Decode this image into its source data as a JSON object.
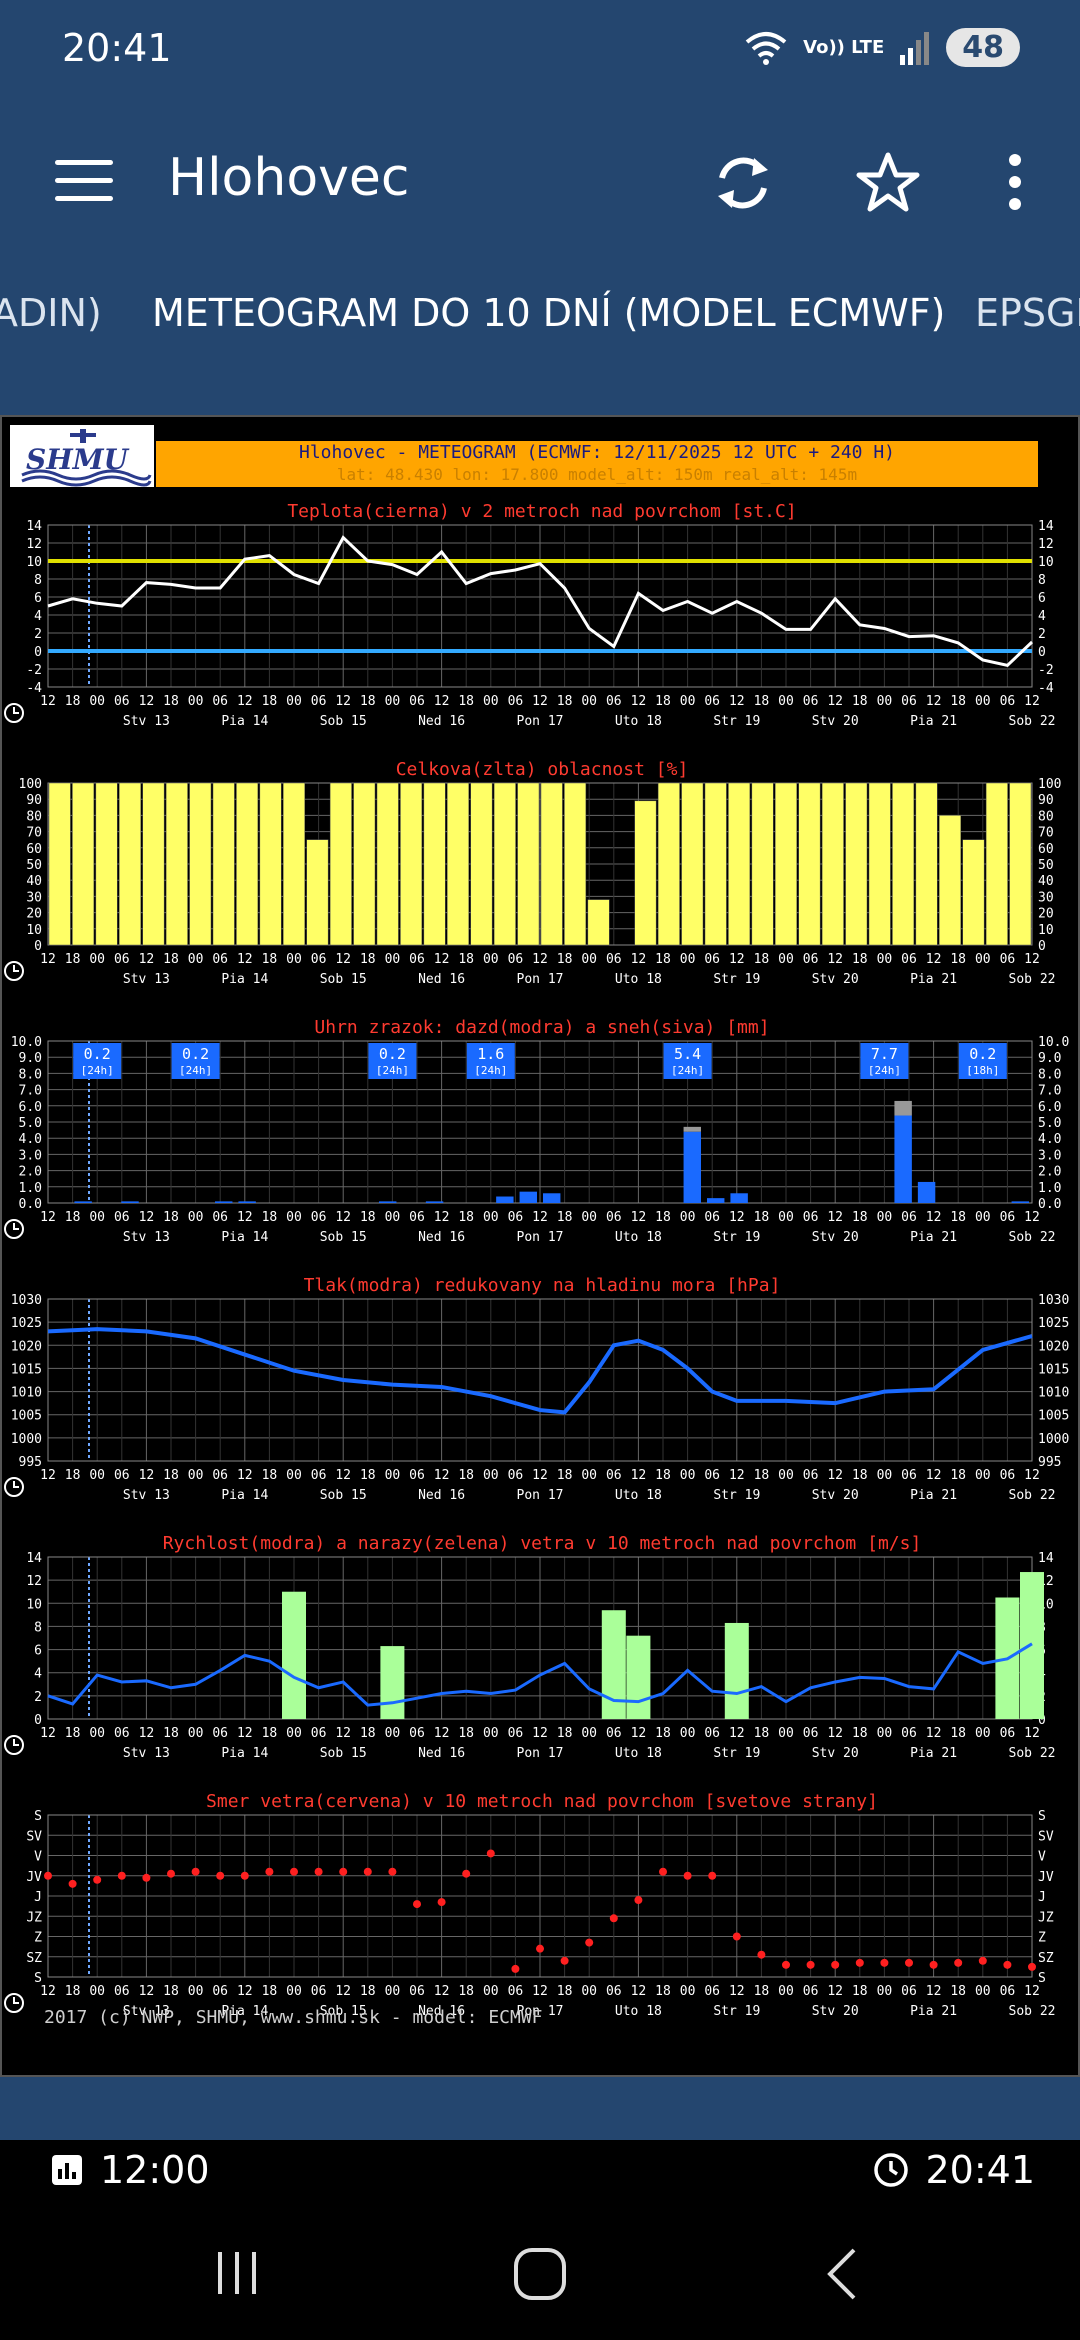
{
  "status": {
    "time": "20:41",
    "signal_label": "Vo)) LTE",
    "battery": "48"
  },
  "app": {
    "title": "Hlohovec"
  },
  "tabs": [
    {
      "label": "ADIN)"
    },
    {
      "label": "METEOGRAM DO 10 DNÍ (MODEL ECMWF)"
    },
    {
      "label": "EPSGI"
    }
  ],
  "meteogram": {
    "logo": "SHMU",
    "header_title": "Hlohovec - METEOGRAM (ECMWF: 12/11/2025 12 UTC + 240 H)",
    "header_sub": "lat: 48.430   lon: 17.800   model_alt: 150m   real_alt: 145m",
    "footer": "2017 (c) NWP, SHMU, www.shmu.sk - model: ECMWF",
    "hour_ticks": [
      "12",
      "18",
      "00",
      "06",
      "12",
      "18",
      "00",
      "06",
      "12",
      "18",
      "00",
      "06",
      "12",
      "18",
      "00",
      "06",
      "12",
      "18",
      "00",
      "06",
      "12",
      "18",
      "00",
      "06",
      "12",
      "18",
      "00",
      "06",
      "12",
      "18",
      "00",
      "06",
      "12",
      "18",
      "00",
      "06",
      "12",
      "18",
      "00",
      "06",
      "12"
    ],
    "days": [
      "Stv 13",
      "Pia 14",
      "Sob 15",
      "Ned 16",
      "Pon 17",
      "Uto 18",
      "Str 19",
      "Stv 20",
      "Pia 21",
      "Sob 22"
    ]
  },
  "chart_data": [
    {
      "type": "line",
      "title": "Teplota(cierna) v 2 metroch nad povrchom [st.C]",
      "ylim": [
        -4,
        14
      ],
      "yticks": [
        "-4",
        "-2",
        "0",
        "2",
        "4",
        "6",
        "8",
        "10",
        "12",
        "14"
      ],
      "x_hours": [
        0,
        6,
        12,
        18,
        24,
        30,
        36,
        42,
        48,
        54,
        60,
        66,
        72,
        78,
        84,
        90,
        96,
        102,
        108,
        114,
        120,
        126,
        132,
        138,
        144,
        150,
        156,
        162,
        168,
        174,
        180,
        186,
        192,
        198,
        204,
        210,
        216,
        222,
        228,
        234,
        240
      ],
      "values": [
        5,
        5.8,
        5.3,
        5,
        7.6,
        7.4,
        7,
        7,
        10.2,
        10.6,
        8.5,
        7.5,
        12.6,
        10,
        9.6,
        8.5,
        11,
        7.5,
        8.6,
        9,
        9.7,
        7,
        2.5,
        0.5,
        6.4,
        4.5,
        5.5,
        4.2,
        5.5,
        4.2,
        2.4,
        2.4,
        5.8,
        2.9,
        2.5,
        1.6,
        1.7,
        0.9,
        -1,
        -1.6,
        1
      ],
      "ref_lines": [
        {
          "value": 10,
          "color": "#e0e000"
        },
        {
          "value": 0,
          "color": "#33aaff"
        }
      ]
    },
    {
      "type": "bar",
      "title": "Celkova(zlta) oblacnost [%]",
      "ylim": [
        0,
        100
      ],
      "yticks": [
        "0",
        "10",
        "20",
        "30",
        "40",
        "50",
        "60",
        "70",
        "80",
        "90",
        "100"
      ],
      "values": [
        100,
        100,
        100,
        100,
        100,
        100,
        100,
        100,
        100,
        100,
        100,
        65,
        100,
        100,
        100,
        100,
        100,
        100,
        100,
        100,
        100,
        100,
        100,
        28,
        0,
        89,
        100,
        100,
        100,
        100,
        100,
        100,
        100,
        100,
        100,
        100,
        100,
        100,
        80,
        65,
        100,
        100
      ],
      "color": "#ffff66"
    },
    {
      "type": "bar",
      "title": "Uhrn zrazok: dazd(modra) a sneh(siva) [mm]",
      "ylim": [
        0,
        10
      ],
      "yticks": [
        "0.0",
        "1.0",
        "2.0",
        "3.0",
        "4.0",
        "5.0",
        "6.0",
        "7.0",
        "8.0",
        "9.0",
        "10.0"
      ],
      "series": [
        {
          "name": "dazd",
          "color": "#1a6aff",
          "values": [
            0,
            0.1,
            0,
            0.1,
            0,
            0,
            0,
            0.1,
            0.1,
            0,
            0,
            0,
            0,
            0,
            0.1,
            0,
            0.1,
            0,
            0,
            0.4,
            0.7,
            0.6,
            0,
            0,
            0,
            0,
            0,
            4.4,
            0.3,
            0.6,
            0,
            0,
            0,
            0,
            0,
            0,
            5.4,
            1.3,
            0,
            0,
            0,
            0.1
          ]
        },
        {
          "name": "sneh",
          "color": "#999999",
          "values": [
            0,
            0,
            0,
            0,
            0,
            0,
            0,
            0,
            0,
            0,
            0,
            0,
            0,
            0,
            0,
            0,
            0,
            0,
            0,
            0,
            0,
            0,
            0,
            0,
            0,
            0,
            0,
            0.3,
            0,
            0,
            0,
            0,
            0,
            0,
            0,
            0,
            0.9,
            0,
            0,
            0,
            0,
            0
          ]
        }
      ],
      "totals": [
        {
          "value": "0.2",
          "period": "[24h]",
          "at_hour": 12
        },
        {
          "value": "0.2",
          "period": "[24h]",
          "at_hour": 36
        },
        {
          "value": "0.2",
          "period": "[24h]",
          "at_hour": 84
        },
        {
          "value": "1.6",
          "period": "[24h]",
          "at_hour": 108
        },
        {
          "value": "5.4",
          "period": "[24h]",
          "at_hour": 156
        },
        {
          "value": "7.7",
          "period": "[24h]",
          "at_hour": 204
        },
        {
          "value": "0.2",
          "period": "[18h]",
          "at_hour": 228
        }
      ]
    },
    {
      "type": "line",
      "title": "Tlak(modra) redukovany na hladinu mora [hPa]",
      "ylim": [
        995,
        1030
      ],
      "yticks": [
        "995",
        "1000",
        "1005",
        "1010",
        "1015",
        "1020",
        "1025",
        "1030"
      ],
      "x_hours": [
        0,
        12,
        24,
        36,
        48,
        60,
        72,
        84,
        96,
        108,
        120,
        126,
        132,
        138,
        144,
        150,
        156,
        162,
        168,
        180,
        192,
        204,
        216,
        228,
        240
      ],
      "values": [
        1023,
        1023.5,
        1023,
        1021.5,
        1018,
        1014.5,
        1012.5,
        1011.5,
        1011,
        1009,
        1006,
        1005.5,
        1012,
        1020,
        1021,
        1019,
        1015,
        1010,
        1008,
        1008,
        1007.5,
        1010,
        1010.5,
        1019,
        1022
      ],
      "color": "#1a6aff"
    },
    {
      "type": "line",
      "title": "Rychlost(modra) a narazy(zelena) vetra v 10 metroch nad povrchom [m/s]",
      "ylim": [
        0,
        14
      ],
      "yticks": [
        "0",
        "2",
        "4",
        "6",
        "8",
        "10",
        "12",
        "14"
      ],
      "x_hours": [
        0,
        6,
        12,
        18,
        24,
        30,
        36,
        42,
        48,
        54,
        60,
        66,
        72,
        78,
        84,
        90,
        96,
        102,
        108,
        114,
        120,
        126,
        132,
        138,
        144,
        150,
        156,
        162,
        168,
        174,
        180,
        186,
        192,
        198,
        204,
        210,
        216,
        222,
        228,
        234,
        240
      ],
      "values": [
        2,
        1.3,
        3.8,
        3.2,
        3.3,
        2.7,
        3,
        4.2,
        5.5,
        5,
        3.6,
        2.7,
        3.2,
        1.2,
        1.4,
        1.8,
        2.2,
        2.4,
        2.2,
        2.5,
        3.8,
        4.8,
        2.6,
        1.6,
        1.5,
        2.2,
        4.2,
        2.4,
        2.2,
        2.8,
        1.5,
        2.7,
        3.2,
        3.6,
        3.5,
        2.8,
        2.6,
        5.8,
        4.8,
        5.2,
        6.5
      ],
      "gust_bars": [
        {
          "hour": 60,
          "value": 11
        },
        {
          "hour": 84,
          "value": 6.3
        },
        {
          "hour": 138,
          "value": 9.4
        },
        {
          "hour": 144,
          "value": 7.2
        },
        {
          "hour": 168,
          "value": 8.3
        },
        {
          "hour": 234,
          "value": 10.5
        },
        {
          "hour": 240,
          "value": 12.7
        }
      ],
      "color": "#1a6aff",
      "gust_color": "#aaff99"
    },
    {
      "type": "scatter",
      "title": "Smer vetra(cervena) v 10 metroch nad povrchom [svetove strany]",
      "yticks": [
        "S",
        "SZ",
        "Z",
        "JZ",
        "J",
        "JV",
        "V",
        "SV",
        "S"
      ],
      "x_hours": [
        0,
        6,
        12,
        18,
        24,
        30,
        36,
        42,
        48,
        54,
        60,
        66,
        72,
        78,
        84,
        90,
        96,
        102,
        108,
        114,
        120,
        126,
        132,
        138,
        144,
        150,
        156,
        162,
        168,
        174,
        180,
        186,
        192,
        198,
        204,
        210,
        216,
        222,
        228,
        234,
        240
      ],
      "values": [
        5,
        4.6,
        4.8,
        5,
        4.9,
        5.1,
        5.2,
        5,
        5,
        5.2,
        5.2,
        5.2,
        5.2,
        5.2,
        5.2,
        3.6,
        3.7,
        5.1,
        6.1,
        0.4,
        1.4,
        0.8,
        1.7,
        2.9,
        3.8,
        5.2,
        5,
        5,
        2,
        1.1,
        0.6,
        0.6,
        0.6,
        0.7,
        0.7,
        0.7,
        0.6,
        0.7,
        0.8,
        0.6,
        0.5
      ],
      "color": "#ff2020"
    }
  ],
  "bottom": {
    "left_time": "12:00",
    "right_time": "20:41"
  }
}
